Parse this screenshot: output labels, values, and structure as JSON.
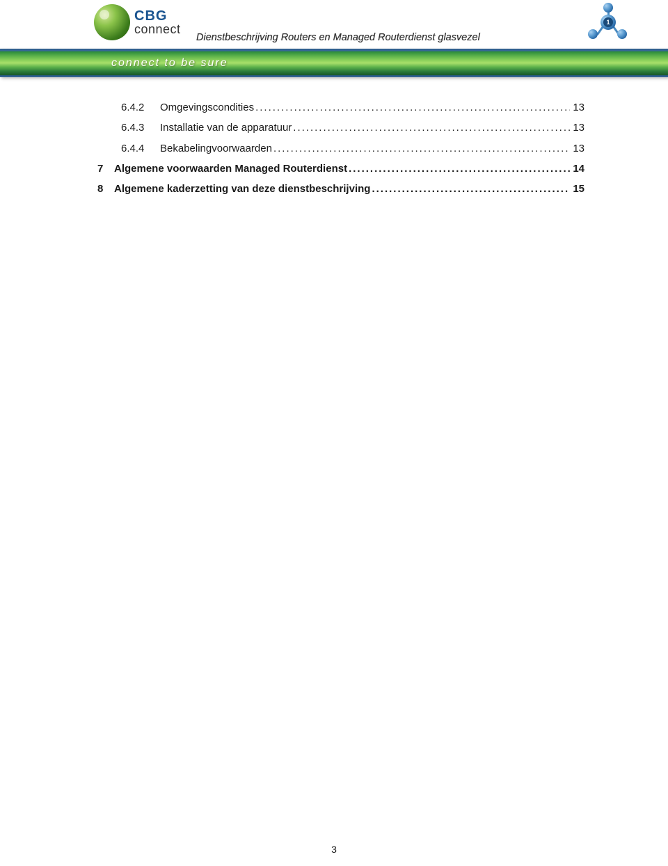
{
  "header": {
    "brand_top": "CBG",
    "brand_bottom": "connect",
    "doc_title": "Dienstbeschrijving Routers en Managed Routerdienst glasvezel",
    "tagline": "connect to be sure",
    "molecule_value": "1"
  },
  "toc": [
    {
      "level": 2,
      "number": "6.4.2",
      "title": "Omgevingscondities",
      "page": "13",
      "bold": false
    },
    {
      "level": 2,
      "number": "6.4.3",
      "title": "Installatie van de apparatuur",
      "page": "13",
      "bold": false
    },
    {
      "level": 2,
      "number": "6.4.4",
      "title": "Bekabelingvoorwaarden",
      "page": "13",
      "bold": false
    },
    {
      "level": 1,
      "number": "7",
      "title": "Algemene voorwaarden Managed Routerdienst",
      "page": "14",
      "bold": true
    },
    {
      "level": 1,
      "number": "8",
      "title": "Algemene kaderzetting van deze dienstbeschrijving",
      "page": "15",
      "bold": true
    }
  ],
  "footer": {
    "page_number": "3"
  },
  "colors": {
    "text": "#1a1a1a",
    "brand_blue": "#1a5490",
    "banner_green": "#5ab04a",
    "background": "#ffffff"
  }
}
